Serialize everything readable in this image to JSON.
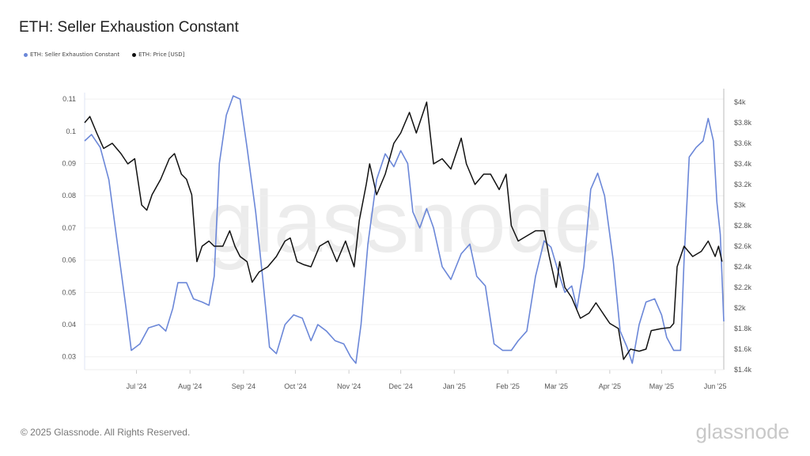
{
  "chart_data": {
    "type": "line",
    "title": "ETH: Seller Exhaustion Constant",
    "legend_position": "top-left",
    "grid": true,
    "watermark": "glassnode",
    "x_tick_labels": [
      "Jul '24",
      "Aug '24",
      "Sep '24",
      "Oct '24",
      "Nov '24",
      "Dec '24",
      "Jan '25",
      "Feb '25",
      "Mar '25",
      "Apr '25",
      "May '25",
      "Jun '25"
    ],
    "x_tick_dates": [
      "2024-07-01",
      "2024-08-01",
      "2024-09-01",
      "2024-10-01",
      "2024-11-01",
      "2024-12-01",
      "2025-01-01",
      "2025-02-01",
      "2025-03-01",
      "2025-04-01",
      "2025-05-01",
      "2025-06-01"
    ],
    "xlim": [
      "2024-06-01",
      "2025-06-06"
    ],
    "y_left": {
      "ticks": [
        0.03,
        0.04,
        0.05,
        0.06,
        0.07,
        0.08,
        0.09,
        0.1,
        0.11
      ],
      "tick_labels": [
        "0.03",
        "0.04",
        "0.05",
        "0.06",
        "0.07",
        "0.08",
        "0.09",
        "0.1",
        "0.11"
      ],
      "ylim": [
        0.026,
        0.112
      ]
    },
    "y_right": {
      "scale": "linear",
      "ticks": [
        1400,
        1600,
        1800,
        2000,
        2200,
        2400,
        2600,
        2800,
        3000,
        3200,
        3400,
        3600,
        3800,
        4000
      ],
      "tick_labels": [
        "$1.4k",
        "$1.6k",
        "$1.8k",
        "$2k",
        "$2.2k",
        "$2.4k",
        "$2.6k",
        "$2.8k",
        "$3k",
        "$3.2k",
        "$3.4k",
        "$3.6k",
        "$3.8k",
        "$4k"
      ],
      "ylim": [
        1400,
        4092
      ]
    },
    "series": [
      {
        "name": "ETH: Seller Exhaustion Constant",
        "axis": "left",
        "color": "#6b87d8",
        "points": [
          [
            "2024-06-01",
            0.097
          ],
          [
            "2024-06-05",
            0.099
          ],
          [
            "2024-06-10",
            0.095
          ],
          [
            "2024-06-15",
            0.085
          ],
          [
            "2024-06-20",
            0.065
          ],
          [
            "2024-06-25",
            0.045
          ],
          [
            "2024-06-28",
            0.032
          ],
          [
            "2024-07-03",
            0.034
          ],
          [
            "2024-07-08",
            0.039
          ],
          [
            "2024-07-14",
            0.04
          ],
          [
            "2024-07-18",
            0.038
          ],
          [
            "2024-07-22",
            0.045
          ],
          [
            "2024-07-25",
            0.053
          ],
          [
            "2024-07-30",
            0.053
          ],
          [
            "2024-08-03",
            0.048
          ],
          [
            "2024-08-08",
            0.047
          ],
          [
            "2024-08-12",
            0.046
          ],
          [
            "2024-08-15",
            0.055
          ],
          [
            "2024-08-18",
            0.09
          ],
          [
            "2024-08-22",
            0.105
          ],
          [
            "2024-08-26",
            0.111
          ],
          [
            "2024-08-30",
            0.11
          ],
          [
            "2024-09-03",
            0.095
          ],
          [
            "2024-09-08",
            0.075
          ],
          [
            "2024-09-12",
            0.055
          ],
          [
            "2024-09-16",
            0.033
          ],
          [
            "2024-09-20",
            0.031
          ],
          [
            "2024-09-25",
            0.04
          ],
          [
            "2024-09-30",
            0.043
          ],
          [
            "2024-10-05",
            0.042
          ],
          [
            "2024-10-10",
            0.035
          ],
          [
            "2024-10-14",
            0.04
          ],
          [
            "2024-10-19",
            0.038
          ],
          [
            "2024-10-24",
            0.035
          ],
          [
            "2024-10-29",
            0.034
          ],
          [
            "2024-11-02",
            0.03
          ],
          [
            "2024-11-05",
            0.028
          ],
          [
            "2024-11-08",
            0.04
          ],
          [
            "2024-11-12",
            0.065
          ],
          [
            "2024-11-17",
            0.085
          ],
          [
            "2024-11-22",
            0.093
          ],
          [
            "2024-11-27",
            0.089
          ],
          [
            "2024-12-01",
            0.094
          ],
          [
            "2024-12-05",
            0.09
          ],
          [
            "2024-12-08",
            0.075
          ],
          [
            "2024-12-12",
            0.07
          ],
          [
            "2024-12-16",
            0.076
          ],
          [
            "2024-12-20",
            0.07
          ],
          [
            "2024-12-25",
            0.058
          ],
          [
            "2024-12-30",
            0.054
          ],
          [
            "2025-01-05",
            0.062
          ],
          [
            "2025-01-10",
            0.065
          ],
          [
            "2025-01-14",
            0.055
          ],
          [
            "2025-01-19",
            0.052
          ],
          [
            "2025-01-24",
            0.034
          ],
          [
            "2025-01-29",
            0.032
          ],
          [
            "2025-02-03",
            0.032
          ],
          [
            "2025-02-07",
            0.035
          ],
          [
            "2025-02-12",
            0.038
          ],
          [
            "2025-02-17",
            0.055
          ],
          [
            "2025-02-22",
            0.066
          ],
          [
            "2025-02-26",
            0.064
          ],
          [
            "2025-03-03",
            0.055
          ],
          [
            "2025-03-06",
            0.05
          ],
          [
            "2025-03-10",
            0.052
          ],
          [
            "2025-03-13",
            0.045
          ],
          [
            "2025-03-17",
            0.058
          ],
          [
            "2025-03-21",
            0.082
          ],
          [
            "2025-03-25",
            0.087
          ],
          [
            "2025-03-29",
            0.08
          ],
          [
            "2025-04-03",
            0.06
          ],
          [
            "2025-04-07",
            0.038
          ],
          [
            "2025-04-11",
            0.033
          ],
          [
            "2025-04-14",
            0.028
          ],
          [
            "2025-04-18",
            0.04
          ],
          [
            "2025-04-22",
            0.047
          ],
          [
            "2025-04-27",
            0.048
          ],
          [
            "2025-05-01",
            0.043
          ],
          [
            "2025-05-04",
            0.036
          ],
          [
            "2025-05-08",
            0.032
          ],
          [
            "2025-05-12",
            0.032
          ],
          [
            "2025-05-14",
            0.06
          ],
          [
            "2025-05-17",
            0.092
          ],
          [
            "2025-05-21",
            0.095
          ],
          [
            "2025-05-25",
            0.097
          ],
          [
            "2025-05-28",
            0.104
          ],
          [
            "2025-05-31",
            0.097
          ],
          [
            "2025-06-02",
            0.078
          ],
          [
            "2025-06-04",
            0.068
          ],
          [
            "2025-06-06",
            0.041
          ]
        ]
      },
      {
        "name": "ETH: Price [USD]",
        "axis": "right",
        "color": "#111111",
        "points": [
          [
            "2024-06-01",
            3800
          ],
          [
            "2024-06-04",
            3860
          ],
          [
            "2024-06-08",
            3700
          ],
          [
            "2024-06-12",
            3550
          ],
          [
            "2024-06-17",
            3600
          ],
          [
            "2024-06-22",
            3500
          ],
          [
            "2024-06-26",
            3400
          ],
          [
            "2024-06-30",
            3450
          ],
          [
            "2024-07-04",
            3000
          ],
          [
            "2024-07-07",
            2950
          ],
          [
            "2024-07-10",
            3100
          ],
          [
            "2024-07-15",
            3250
          ],
          [
            "2024-07-20",
            3450
          ],
          [
            "2024-07-23",
            3500
          ],
          [
            "2024-07-27",
            3300
          ],
          [
            "2024-07-30",
            3250
          ],
          [
            "2024-08-02",
            3100
          ],
          [
            "2024-08-05",
            2450
          ],
          [
            "2024-08-08",
            2600
          ],
          [
            "2024-08-12",
            2650
          ],
          [
            "2024-08-15",
            2600
          ],
          [
            "2024-08-20",
            2600
          ],
          [
            "2024-08-24",
            2750
          ],
          [
            "2024-08-27",
            2600
          ],
          [
            "2024-08-30",
            2500
          ],
          [
            "2024-09-03",
            2450
          ],
          [
            "2024-09-06",
            2250
          ],
          [
            "2024-09-10",
            2350
          ],
          [
            "2024-09-15",
            2400
          ],
          [
            "2024-09-20",
            2500
          ],
          [
            "2024-09-25",
            2650
          ],
          [
            "2024-09-28",
            2680
          ],
          [
            "2024-10-02",
            2450
          ],
          [
            "2024-10-06",
            2420
          ],
          [
            "2024-10-10",
            2400
          ],
          [
            "2024-10-15",
            2600
          ],
          [
            "2024-10-20",
            2650
          ],
          [
            "2024-10-25",
            2450
          ],
          [
            "2024-10-30",
            2650
          ],
          [
            "2024-11-04",
            2400
          ],
          [
            "2024-11-07",
            2850
          ],
          [
            "2024-11-11",
            3200
          ],
          [
            "2024-11-13",
            3400
          ],
          [
            "2024-11-17",
            3100
          ],
          [
            "2024-11-22",
            3300
          ],
          [
            "2024-11-27",
            3600
          ],
          [
            "2024-12-01",
            3700
          ],
          [
            "2024-12-06",
            3900
          ],
          [
            "2024-12-10",
            3700
          ],
          [
            "2024-12-16",
            4000
          ],
          [
            "2024-12-20",
            3400
          ],
          [
            "2024-12-25",
            3450
          ],
          [
            "2024-12-30",
            3350
          ],
          [
            "2025-01-05",
            3650
          ],
          [
            "2025-01-08",
            3400
          ],
          [
            "2025-01-13",
            3200
          ],
          [
            "2025-01-18",
            3300
          ],
          [
            "2025-01-22",
            3300
          ],
          [
            "2025-01-27",
            3150
          ],
          [
            "2025-01-31",
            3300
          ],
          [
            "2025-02-03",
            2800
          ],
          [
            "2025-02-07",
            2650
          ],
          [
            "2025-02-12",
            2700
          ],
          [
            "2025-02-17",
            2750
          ],
          [
            "2025-02-22",
            2750
          ],
          [
            "2025-02-25",
            2500
          ],
          [
            "2025-03-01",
            2200
          ],
          [
            "2025-03-03",
            2450
          ],
          [
            "2025-03-06",
            2200
          ],
          [
            "2025-03-10",
            2100
          ],
          [
            "2025-03-15",
            1900
          ],
          [
            "2025-03-20",
            1950
          ],
          [
            "2025-03-24",
            2050
          ],
          [
            "2025-03-28",
            1950
          ],
          [
            "2025-04-01",
            1850
          ],
          [
            "2025-04-06",
            1800
          ],
          [
            "2025-04-09",
            1500
          ],
          [
            "2025-04-13",
            1600
          ],
          [
            "2025-04-18",
            1580
          ],
          [
            "2025-04-22",
            1600
          ],
          [
            "2025-04-25",
            1780
          ],
          [
            "2025-05-01",
            1800
          ],
          [
            "2025-05-06",
            1810
          ],
          [
            "2025-05-08",
            1850
          ],
          [
            "2025-05-10",
            2400
          ],
          [
            "2025-05-14",
            2600
          ],
          [
            "2025-05-19",
            2500
          ],
          [
            "2025-05-24",
            2550
          ],
          [
            "2025-05-28",
            2650
          ],
          [
            "2025-06-01",
            2500
          ],
          [
            "2025-06-03",
            2600
          ],
          [
            "2025-06-05",
            2450
          ]
        ]
      }
    ]
  },
  "legend": {
    "items": [
      {
        "label": "ETH: Seller Exhaustion Constant",
        "color": "#6b87d8"
      },
      {
        "label": "ETH: Price [USD]",
        "color": "#111111"
      }
    ]
  },
  "footer": {
    "copyright": "© 2025 Glassnode. All Rights Reserved.",
    "logo": "glassnode"
  }
}
